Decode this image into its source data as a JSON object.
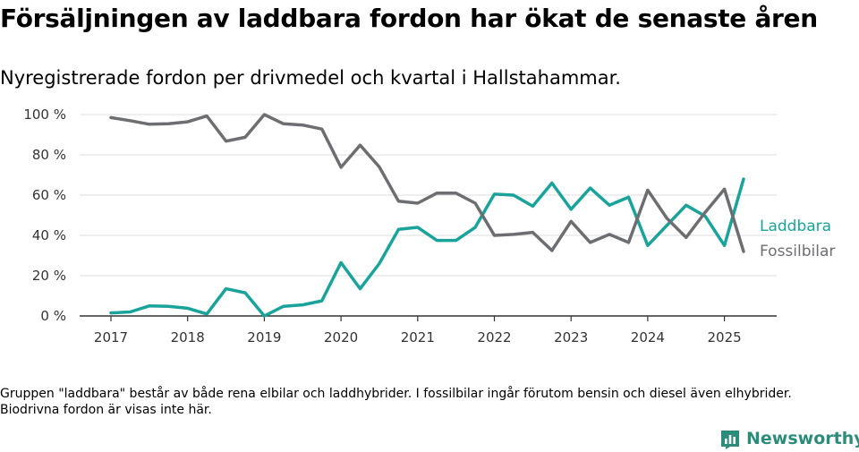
{
  "title": "Försäljningen av laddbara fordon har ökat de senaste åren",
  "subtitle": "Nyregistrerade fordon per drivmedel och kvartal i Hallstahammar.",
  "footnote": "Gruppen \"laddbara\" består av både rena elbilar och laddhybrider. I fossilbilar ingår förutom bensin och diesel även elhybrider. Biodrivna fordon är visas inte här.",
  "brand": {
    "name": "Newsworthy",
    "icon": "newsworthy-logo-icon",
    "color": "#2c8c7a"
  },
  "chart_data": {
    "type": "line",
    "x_unit": "quarter",
    "x_start": "2017 Q1",
    "x_ticks": [
      "2017",
      "2018",
      "2019",
      "2020",
      "2021",
      "2022",
      "2023",
      "2024",
      "2025"
    ],
    "y_ticks": [
      "0 %",
      "20 %",
      "40 %",
      "60 %",
      "80 %",
      "100 %"
    ],
    "ylim": [
      0,
      100
    ],
    "grid": true,
    "legend_placement": "right, at line ends",
    "series": [
      {
        "name": "Laddbara",
        "color": "#1aa39a",
        "values": [
          1.5,
          2,
          5,
          4.8,
          3.8,
          1,
          13.5,
          11.5,
          0,
          4.8,
          5.5,
          7.5,
          26.5,
          13.5,
          26,
          43,
          44,
          37.5,
          37.5,
          44,
          60.5,
          60,
          54.5,
          66,
          53,
          63.5,
          55,
          59,
          35,
          45,
          55,
          49.5,
          35,
          68
        ]
      },
      {
        "name": "Fossilbilar",
        "color": "#6d6e72",
        "values": [
          98.5,
          97,
          95.2,
          95.4,
          96.4,
          99.3,
          86.8,
          88.7,
          100,
          95.4,
          94.8,
          92.8,
          73.8,
          84.8,
          74,
          57,
          56,
          61,
          61,
          56,
          40,
          40.5,
          41.5,
          32.5,
          47,
          36.5,
          40.5,
          36.5,
          62.5,
          48.5,
          39,
          51.5,
          63,
          32
        ]
      }
    ]
  }
}
